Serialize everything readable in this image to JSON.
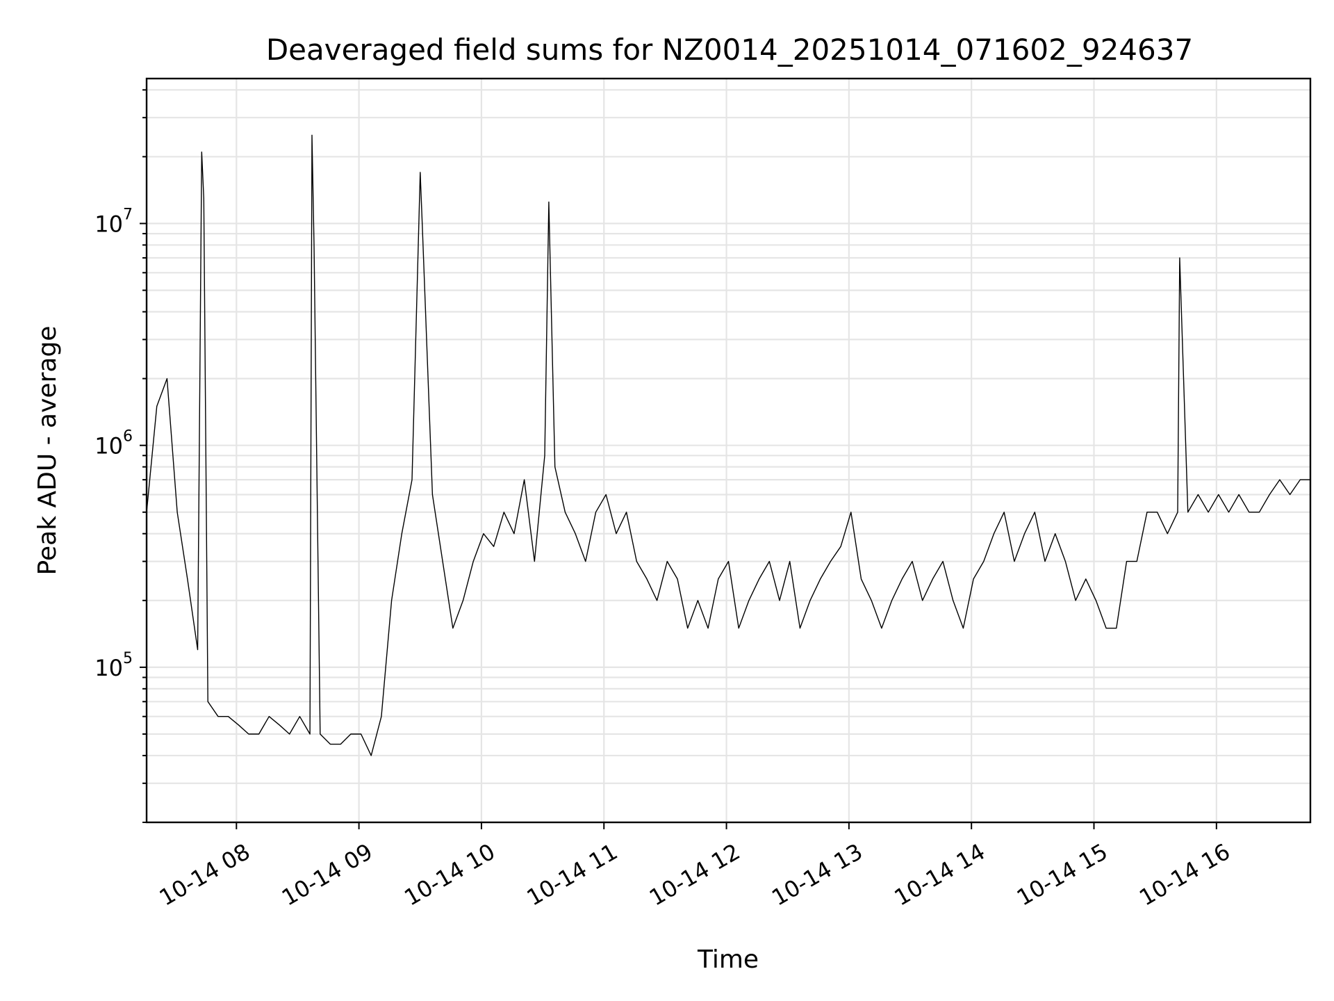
{
  "chart_data": {
    "type": "line",
    "title": "Deaveraged field sums for NZ0014_20251014_071602_924637",
    "xlabel": "Time",
    "ylabel": "Peak ADU - average",
    "yscale": "log",
    "xlim": [
      "2025-10-14 07:16",
      "2025-10-14 16:46"
    ],
    "ylim": [
      20000,
      45000000
    ],
    "grid": true,
    "line_color": "#000000",
    "x_tick_labels": [
      {
        "time": "2025-10-14 08:00",
        "label": "10-14 08"
      },
      {
        "time": "2025-10-14 09:00",
        "label": "10-14 09"
      },
      {
        "time": "2025-10-14 10:00",
        "label": "10-14 10"
      },
      {
        "time": "2025-10-14 11:00",
        "label": "10-14 11"
      },
      {
        "time": "2025-10-14 12:00",
        "label": "10-14 12"
      },
      {
        "time": "2025-10-14 13:00",
        "label": "10-14 13"
      },
      {
        "time": "2025-10-14 14:00",
        "label": "10-14 14"
      },
      {
        "time": "2025-10-14 15:00",
        "label": "10-14 15"
      },
      {
        "time": "2025-10-14 16:00",
        "label": "10-14 16"
      }
    ],
    "y_ticks": [
      {
        "value": 100000,
        "base": "10",
        "exp": "5"
      },
      {
        "value": 1000000,
        "base": "10",
        "exp": "6"
      },
      {
        "value": 10000000,
        "base": "10",
        "exp": "7"
      }
    ],
    "series": [
      {
        "x": [
          "2025-10-14 07:16",
          "2025-10-14 07:21",
          "2025-10-14 07:26",
          "2025-10-14 07:31",
          "2025-10-14 07:36",
          "2025-10-14 07:41",
          "2025-10-14 07:43",
          "2025-10-14 07:44",
          "2025-10-14 07:46",
          "2025-10-14 07:51",
          "2025-10-14 07:56",
          "2025-10-14 08:01",
          "2025-10-14 08:06",
          "2025-10-14 08:11",
          "2025-10-14 08:16",
          "2025-10-14 08:21",
          "2025-10-14 08:26",
          "2025-10-14 08:31",
          "2025-10-14 08:36",
          "2025-10-14 08:37",
          "2025-10-14 08:38",
          "2025-10-14 08:41",
          "2025-10-14 08:46",
          "2025-10-14 08:51",
          "2025-10-14 08:56",
          "2025-10-14 09:01",
          "2025-10-14 09:06",
          "2025-10-14 09:11",
          "2025-10-14 09:16",
          "2025-10-14 09:21",
          "2025-10-14 09:26",
          "2025-10-14 09:30",
          "2025-10-14 09:31",
          "2025-10-14 09:36",
          "2025-10-14 09:41",
          "2025-10-14 09:46",
          "2025-10-14 09:51",
          "2025-10-14 09:56",
          "2025-10-14 10:01",
          "2025-10-14 10:06",
          "2025-10-14 10:11",
          "2025-10-14 10:16",
          "2025-10-14 10:21",
          "2025-10-14 10:26",
          "2025-10-14 10:31",
          "2025-10-14 10:33",
          "2025-10-14 10:36",
          "2025-10-14 10:41",
          "2025-10-14 10:46",
          "2025-10-14 10:51",
          "2025-10-14 10:56",
          "2025-10-14 11:01",
          "2025-10-14 11:06",
          "2025-10-14 11:11",
          "2025-10-14 11:16",
          "2025-10-14 11:21",
          "2025-10-14 11:26",
          "2025-10-14 11:31",
          "2025-10-14 11:36",
          "2025-10-14 11:41",
          "2025-10-14 11:46",
          "2025-10-14 11:51",
          "2025-10-14 11:56",
          "2025-10-14 12:01",
          "2025-10-14 12:06",
          "2025-10-14 12:11",
          "2025-10-14 12:16",
          "2025-10-14 12:21",
          "2025-10-14 12:26",
          "2025-10-14 12:31",
          "2025-10-14 12:36",
          "2025-10-14 12:41",
          "2025-10-14 12:46",
          "2025-10-14 12:51",
          "2025-10-14 12:56",
          "2025-10-14 13:01",
          "2025-10-14 13:06",
          "2025-10-14 13:11",
          "2025-10-14 13:16",
          "2025-10-14 13:21",
          "2025-10-14 13:26",
          "2025-10-14 13:31",
          "2025-10-14 13:36",
          "2025-10-14 13:41",
          "2025-10-14 13:46",
          "2025-10-14 13:51",
          "2025-10-14 13:56",
          "2025-10-14 14:01",
          "2025-10-14 14:06",
          "2025-10-14 14:11",
          "2025-10-14 14:16",
          "2025-10-14 14:21",
          "2025-10-14 14:26",
          "2025-10-14 14:31",
          "2025-10-14 14:36",
          "2025-10-14 14:41",
          "2025-10-14 14:46",
          "2025-10-14 14:51",
          "2025-10-14 14:56",
          "2025-10-14 15:01",
          "2025-10-14 15:06",
          "2025-10-14 15:11",
          "2025-10-14 15:16",
          "2025-10-14 15:21",
          "2025-10-14 15:26",
          "2025-10-14 15:31",
          "2025-10-14 15:36",
          "2025-10-14 15:41",
          "2025-10-14 15:42",
          "2025-10-14 15:46",
          "2025-10-14 15:51",
          "2025-10-14 15:56",
          "2025-10-14 16:01",
          "2025-10-14 16:06",
          "2025-10-14 16:11",
          "2025-10-14 16:16",
          "2025-10-14 16:21",
          "2025-10-14 16:26",
          "2025-10-14 16:31",
          "2025-10-14 16:36",
          "2025-10-14 16:41",
          "2025-10-14 16:46"
        ],
        "y": [
          500000,
          1500000,
          2000000,
          500000,
          250000,
          120000,
          21000000,
          13000000,
          70000,
          60000,
          60000,
          55000,
          50000,
          50000,
          60000,
          55000,
          50000,
          60000,
          50000,
          25000000,
          8000000,
          50000,
          45000,
          45000,
          50000,
          50000,
          40000,
          60000,
          200000,
          400000,
          700000,
          17000000,
          10000000,
          600000,
          300000,
          150000,
          200000,
          300000,
          400000,
          350000,
          500000,
          400000,
          700000,
          300000,
          900000,
          12500000,
          800000,
          500000,
          400000,
          300000,
          500000,
          600000,
          400000,
          500000,
          300000,
          250000,
          200000,
          300000,
          250000,
          150000,
          200000,
          150000,
          250000,
          300000,
          150000,
          200000,
          250000,
          300000,
          200000,
          300000,
          150000,
          200000,
          250000,
          300000,
          350000,
          500000,
          250000,
          200000,
          150000,
          200000,
          250000,
          300000,
          200000,
          250000,
          300000,
          200000,
          150000,
          250000,
          300000,
          400000,
          500000,
          300000,
          400000,
          500000,
          300000,
          400000,
          300000,
          200000,
          250000,
          200000,
          150000,
          150000,
          300000,
          300000,
          500000,
          500000,
          400000,
          500000,
          7000000,
          500000,
          600000,
          500000,
          600000,
          500000,
          600000,
          500000,
          500000,
          600000,
          700000,
          600000,
          700000,
          700000
        ]
      }
    ]
  }
}
